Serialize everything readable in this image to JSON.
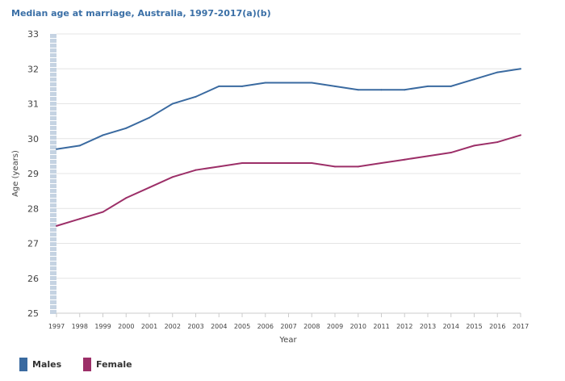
{
  "chart_data": {
    "type": "line",
    "title": "Median age at marriage, Australia, 1997-2017(a)(b)",
    "xlabel": "Year",
    "ylabel": "Age (years)",
    "ylim": [
      25,
      33
    ],
    "yticks": [
      "25",
      "26",
      "27",
      "28",
      "29",
      "30",
      "31",
      "32",
      "33"
    ],
    "categories": [
      "1997",
      "1998",
      "1999",
      "2000",
      "2001",
      "2002",
      "2003",
      "2004",
      "2005",
      "2006",
      "2007",
      "2008",
      "2009",
      "2010",
      "2011",
      "2012",
      "2013",
      "2014",
      "2015",
      "2016",
      "2017"
    ],
    "grid": true,
    "legend_placement": "bottom-left",
    "series": [
      {
        "name": "Males",
        "color": "#3a6aa0",
        "values": [
          29.7,
          29.8,
          30.1,
          30.3,
          30.6,
          31.0,
          31.2,
          31.5,
          31.5,
          31.6,
          31.6,
          31.6,
          31.5,
          31.4,
          31.4,
          31.4,
          31.5,
          31.5,
          31.7,
          31.9,
          32.0
        ]
      },
      {
        "name": "Female",
        "color": "#9c2f68",
        "values": [
          27.5,
          27.7,
          27.9,
          28.3,
          28.6,
          28.9,
          29.1,
          29.2,
          29.3,
          29.3,
          29.3,
          29.3,
          29.2,
          29.2,
          29.3,
          29.4,
          29.5,
          29.6,
          29.8,
          29.9,
          30.1
        ]
      }
    ]
  }
}
